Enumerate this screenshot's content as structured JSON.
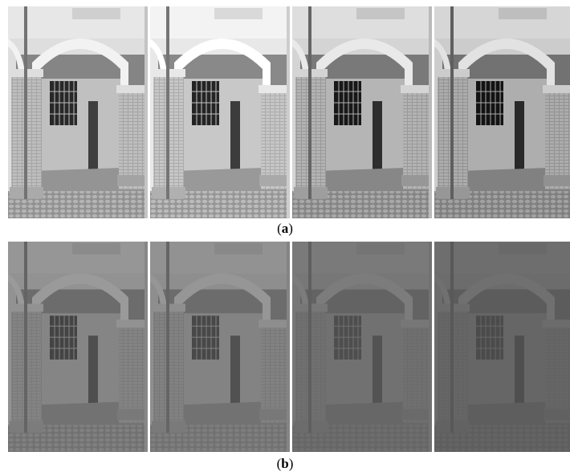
{
  "figure": {
    "caption_a": "a",
    "caption_b": "b"
  },
  "rows": {
    "a": {
      "tiles": [
        {
          "variant": "exposure-1"
        },
        {
          "variant": "exposure-2"
        },
        {
          "variant": "exposure-3"
        },
        {
          "variant": "exposure-4"
        }
      ]
    },
    "b": {
      "tiles": [
        {
          "variant": "faded-1"
        },
        {
          "variant": "faded-2"
        },
        {
          "variant": "faded-3"
        },
        {
          "variant": "faded-4"
        }
      ]
    }
  },
  "colors": {
    "background": "#ffffff",
    "caption": "#000000"
  }
}
